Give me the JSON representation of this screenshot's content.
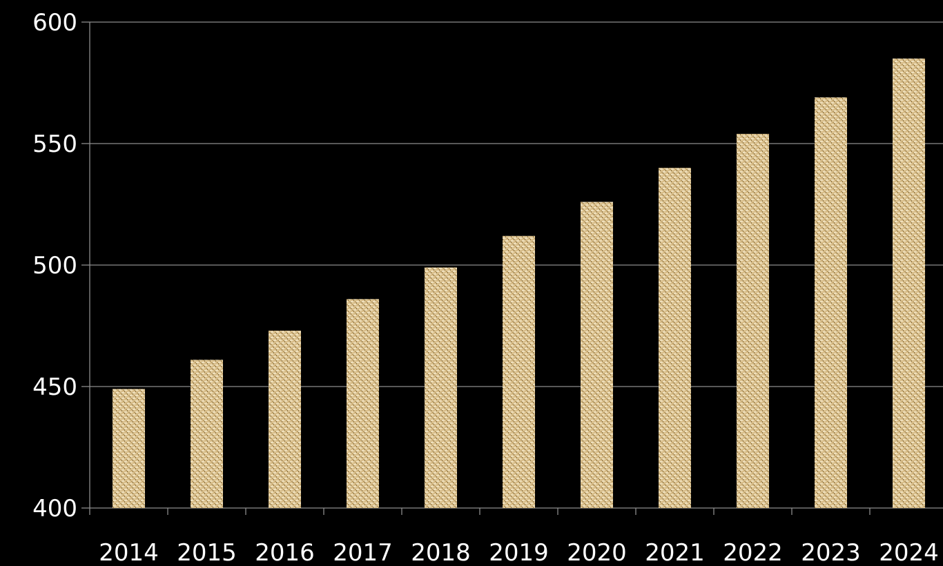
{
  "chart_data": {
    "type": "bar",
    "title": "",
    "xlabel": "",
    "ylabel": "",
    "categories": [
      "2014",
      "2015",
      "2016",
      "2017",
      "2018",
      "2019",
      "2020",
      "2021",
      "2022",
      "2023",
      "2024"
    ],
    "values": [
      449,
      461,
      473,
      486,
      499,
      512,
      526,
      540,
      554,
      569,
      585
    ],
    "ylim": [
      400,
      600
    ],
    "yticks": [
      400,
      450,
      500,
      550,
      600
    ],
    "ytick_labels": [
      "400",
      "450",
      "500",
      "550",
      "600"
    ],
    "grid": true,
    "legend": "none",
    "colors": {
      "background": "#000000",
      "bar_base": "#d9bf8c",
      "bar_weave_light": "#efe0bd",
      "bar_weave_dark": "#8a7040",
      "gridline": "#8c8c8c",
      "text": "#ffffff"
    }
  }
}
